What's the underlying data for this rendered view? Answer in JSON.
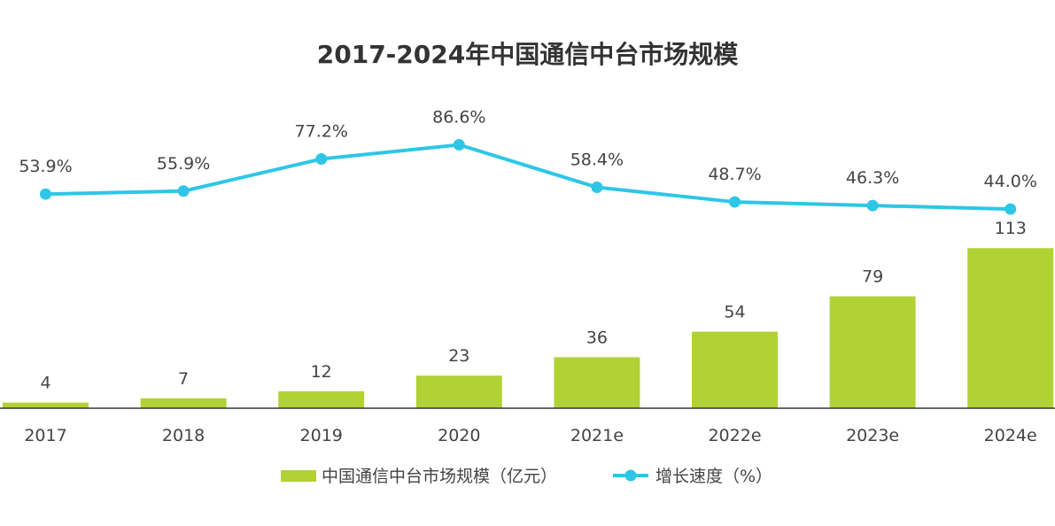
{
  "chart_data": {
    "type": "bar",
    "title": "2017-2024年中国通信中台市场规模",
    "categories": [
      "2017",
      "2018",
      "2019",
      "2020",
      "2021e",
      "2022e",
      "2023e",
      "2024e"
    ],
    "series": [
      {
        "name": "中国通信中台市场规模（亿元）",
        "type": "bar",
        "values": [
          4,
          7,
          12,
          23,
          36,
          54,
          79,
          113
        ],
        "labels": [
          "4",
          "7",
          "12",
          "23",
          "36",
          "54",
          "79",
          "113"
        ],
        "color": "#b1d235"
      },
      {
        "name": "增长速度（%）",
        "type": "line",
        "values": [
          53.9,
          55.9,
          77.2,
          86.6,
          58.4,
          48.7,
          46.3,
          44.0
        ],
        "labels": [
          "53.9%",
          "55.9%",
          "77.2%",
          "86.6%",
          "58.4%",
          "48.7%",
          "46.3%",
          "44.0%"
        ],
        "color": "#2ec6e6"
      }
    ],
    "legend_position": "bottom-center",
    "grid": false
  }
}
